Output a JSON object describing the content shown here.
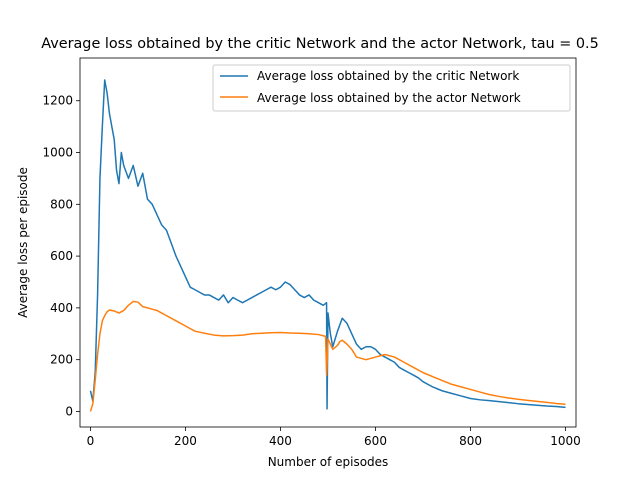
{
  "chart_data": {
    "type": "line",
    "title": "Average loss obtained by the critic Network and the actor Network, tau = 0.5",
    "xlabel": "Number of episodes",
    "ylabel": "Average loss per episode",
    "xlim": [
      -22,
      1022
    ],
    "ylim": [
      -60,
      1365
    ],
    "xticks": [
      0,
      200,
      400,
      600,
      800,
      1000
    ],
    "yticks": [
      0,
      200,
      400,
      600,
      800,
      1000,
      1200
    ],
    "grid": false,
    "legend_position": "top-right",
    "series": [
      {
        "name": "Average loss obtained by the critic Network",
        "color": "#1f77b4",
        "x": [
          0,
          5,
          10,
          15,
          20,
          25,
          30,
          35,
          40,
          45,
          50,
          55,
          60,
          65,
          70,
          80,
          90,
          100,
          110,
          120,
          130,
          140,
          150,
          160,
          170,
          180,
          190,
          200,
          210,
          220,
          230,
          240,
          250,
          260,
          270,
          280,
          290,
          300,
          310,
          320,
          330,
          340,
          350,
          360,
          370,
          380,
          390,
          400,
          410,
          420,
          430,
          440,
          450,
          460,
          470,
          480,
          490,
          497,
          498,
          500,
          505,
          510,
          520,
          530,
          540,
          550,
          560,
          570,
          580,
          590,
          600,
          610,
          620,
          630,
          640,
          650,
          660,
          670,
          680,
          690,
          700,
          720,
          740,
          760,
          780,
          800,
          820,
          840,
          860,
          880,
          900,
          920,
          940,
          960,
          980,
          1000
        ],
        "y": [
          80,
          40,
          150,
          450,
          900,
          1100,
          1280,
          1230,
          1150,
          1100,
          1050,
          930,
          880,
          1000,
          950,
          900,
          950,
          870,
          920,
          820,
          800,
          760,
          720,
          700,
          650,
          600,
          560,
          520,
          480,
          470,
          460,
          450,
          450,
          440,
          430,
          450,
          420,
          440,
          430,
          420,
          430,
          440,
          450,
          460,
          470,
          480,
          470,
          480,
          500,
          490,
          470,
          450,
          440,
          450,
          430,
          420,
          410,
          420,
          10,
          380,
          300,
          250,
          310,
          360,
          340,
          300,
          260,
          240,
          250,
          250,
          240,
          220,
          210,
          200,
          190,
          170,
          160,
          150,
          140,
          130,
          115,
          95,
          80,
          70,
          60,
          50,
          45,
          42,
          38,
          34,
          30,
          27,
          24,
          21,
          19,
          16
        ]
      },
      {
        "name": "Average loss obtained by the actor Network",
        "color": "#ff7f0e",
        "x": [
          0,
          5,
          10,
          15,
          20,
          25,
          30,
          35,
          40,
          50,
          60,
          70,
          80,
          90,
          100,
          110,
          120,
          130,
          140,
          150,
          160,
          180,
          200,
          220,
          240,
          260,
          280,
          300,
          320,
          340,
          360,
          380,
          400,
          420,
          440,
          460,
          480,
          495,
          497,
          499,
          500,
          505,
          510,
          520,
          525,
          530,
          540,
          550,
          560,
          580,
          600,
          620,
          640,
          660,
          680,
          700,
          720,
          740,
          760,
          780,
          800,
          820,
          840,
          860,
          880,
          900,
          920,
          940,
          960,
          980,
          1000
        ],
        "y": [
          0,
          30,
          120,
          220,
          300,
          350,
          370,
          385,
          392,
          388,
          380,
          390,
          410,
          425,
          422,
          405,
          400,
          395,
          390,
          380,
          370,
          350,
          330,
          310,
          302,
          295,
          292,
          293,
          295,
          300,
          302,
          304,
          305,
          303,
          302,
          300,
          297,
          290,
          140,
          220,
          280,
          260,
          240,
          255,
          270,
          275,
          260,
          240,
          210,
          200,
          210,
          220,
          210,
          190,
          170,
          150,
          135,
          120,
          105,
          95,
          85,
          75,
          65,
          58,
          52,
          47,
          43,
          39,
          35,
          31,
          28
        ]
      }
    ]
  }
}
